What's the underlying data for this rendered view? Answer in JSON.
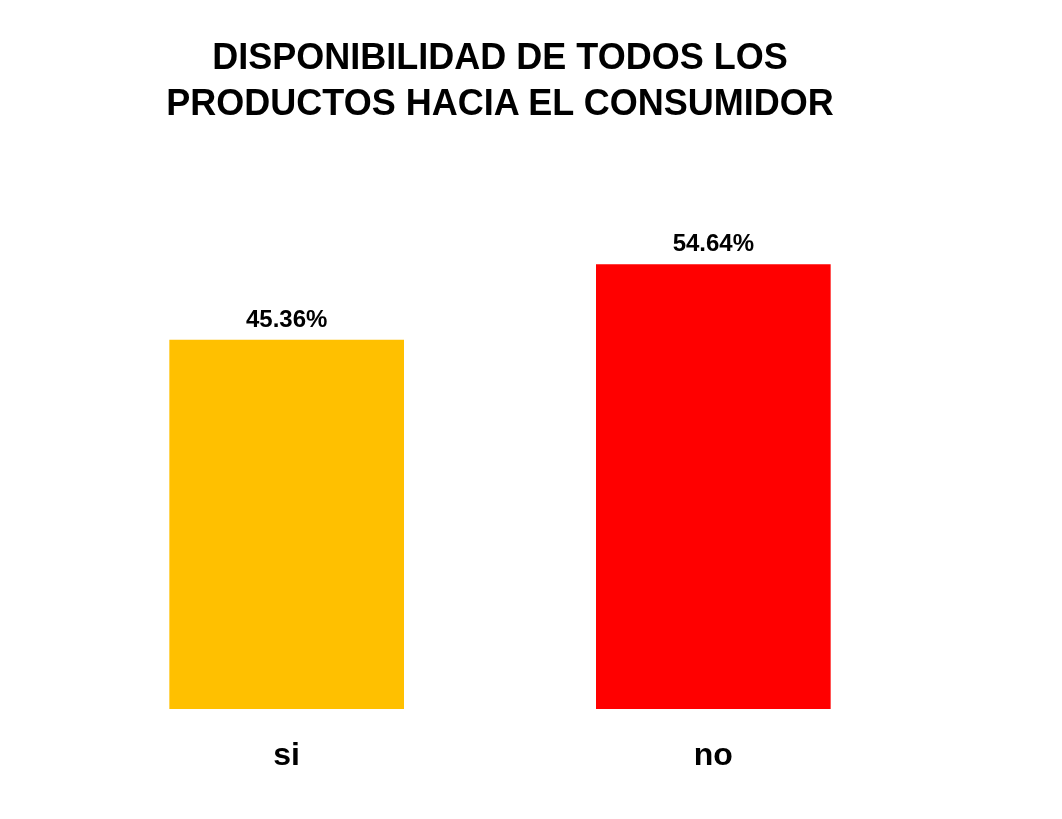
{
  "chart_data": {
    "type": "bar",
    "title": "DISPONIBILIDAD DE TODOS LOS PRODUCTOS HACIA EL CONSUMIDOR",
    "categories": [
      "si",
      "no"
    ],
    "values": [
      45.36,
      54.64
    ],
    "colors": [
      "#ffc000",
      "#ff0000"
    ],
    "value_labels": [
      "45.36%",
      "54.64%"
    ],
    "grid": false
  }
}
